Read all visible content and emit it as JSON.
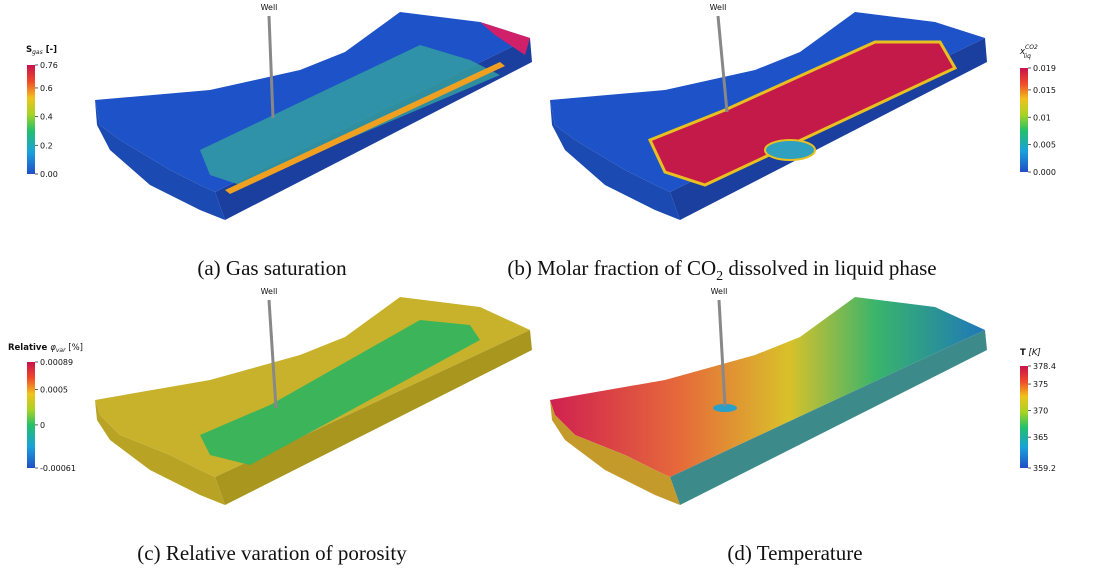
{
  "panels": [
    {
      "caption": {
        "text": "(a) Gas saturation"
      },
      "well": "Well",
      "colorbar": {
        "title": {
          "main": "S",
          "sub": "gas",
          "rest": " [-]"
        },
        "ticks": [
          "0.76",
          "0.6",
          "0.4",
          "0.2",
          "0.00"
        ]
      }
    },
    {
      "caption": {
        "text": "(b) Molar fraction of CO",
        "sub": "2",
        "rest": " dissolved in liquid phase"
      },
      "well": "Well",
      "colorbar": {
        "title": {
          "main": "x",
          "sub": "liq",
          "sup": "CO2"
        },
        "ticks": [
          "0.019",
          "0.015",
          "0.01",
          "0.005",
          "0.000"
        ]
      }
    },
    {
      "caption": {
        "text": "(c) Relative varation of porosity"
      },
      "well": "Well",
      "colorbar": {
        "title": {
          "main": "Relative",
          "symbol": "φ",
          "sub": "var",
          "rest": " [%]"
        },
        "ticks": [
          "0.00089",
          "0.0005",
          "0",
          "-0.00061"
        ]
      }
    },
    {
      "caption": {
        "text": "(d) Temperature"
      },
      "well": "Well",
      "colorbar": {
        "title": {
          "main": "T",
          "rest": " [K]"
        },
        "ticks": [
          "378.4",
          "375",
          "370",
          "365",
          "359.2"
        ]
      }
    }
  ]
}
